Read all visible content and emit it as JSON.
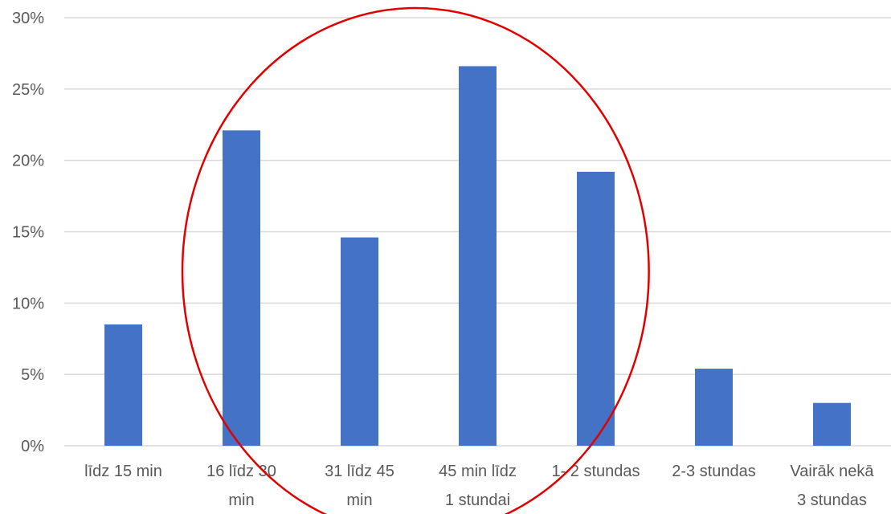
{
  "chart_data": {
    "type": "bar",
    "categories": [
      [
        "līdz 15 min"
      ],
      [
        "16 līdz 30",
        "min"
      ],
      [
        "31 līdz 45",
        "min"
      ],
      [
        "45 min līdz",
        "1 stundai"
      ],
      [
        "1- 2 stundas"
      ],
      [
        "2-3 stundas"
      ],
      [
        "Vairāk nekā",
        "3 stundas"
      ]
    ],
    "values": [
      8.5,
      22.1,
      14.6,
      26.6,
      19.2,
      5.4,
      3.0
    ],
    "value_format": "percent",
    "ylim": [
      0,
      30
    ],
    "yticks": [
      0,
      5,
      10,
      15,
      20,
      25,
      30
    ],
    "ytick_labels": [
      "0%",
      "5%",
      "10%",
      "15%",
      "20%",
      "25%",
      "30%"
    ],
    "grid": true,
    "bar_color": "#4472c4",
    "annotation": {
      "shape": "ellipse",
      "color": "#e00000",
      "encloses_categories": [
        1,
        2,
        3,
        4
      ]
    }
  }
}
